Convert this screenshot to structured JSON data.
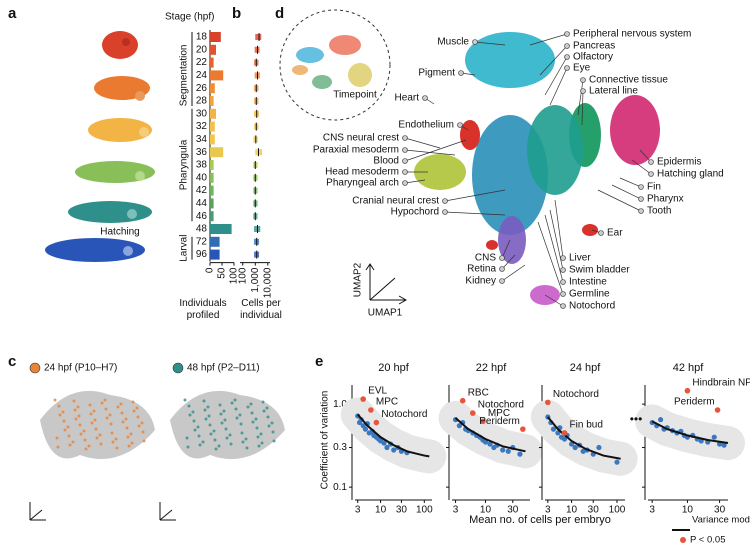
{
  "panel_labels": [
    "a",
    "b",
    "c",
    "d",
    "e"
  ],
  "chart_data": [
    {
      "type": "barh",
      "title": "Stage (hpf)",
      "categories": [
        "18",
        "20",
        "22",
        "24",
        "26",
        "28",
        "30",
        "32",
        "34",
        "36",
        "38",
        "40",
        "42",
        "44",
        "46",
        "48",
        "72",
        "96"
      ],
      "values": [
        45,
        25,
        15,
        55,
        20,
        15,
        25,
        20,
        20,
        55,
        15,
        15,
        15,
        15,
        15,
        90,
        40,
        40
      ],
      "colors": [
        "#d9412b",
        "#e0532c",
        "#e5612e",
        "#ea7a30",
        "#ee8f35",
        "#f0a33c",
        "#f2b444",
        "#f3c04c",
        "#f0c64f",
        "#e8c94e",
        "#a7c955",
        "#88bf58",
        "#6fb35b",
        "#5aa35e",
        "#4a9b78",
        "#2f8f8a",
        "#2f6db5",
        "#2a55b8"
      ],
      "xlim": [
        0,
        100
      ],
      "xticks": [
        0,
        50,
        100
      ],
      "xlabel": "Individuals profiled",
      "periods": [
        "Segmentation",
        "Pharyngula",
        "Hatching",
        "Larval"
      ]
    },
    {
      "type": "box",
      "log": true,
      "values": [
        2000,
        1500,
        1200,
        1500,
        1200,
        1200,
        1300,
        1200,
        1100,
        1800,
        1000,
        1000,
        1000,
        1000,
        1000,
        1500,
        1300,
        1300
      ],
      "q1": [
        1000,
        900,
        800,
        900,
        800,
        800,
        800,
        800,
        700,
        1000,
        700,
        700,
        700,
        700,
        700,
        800,
        800,
        800
      ],
      "q3": [
        3000,
        2200,
        1800,
        2300,
        1800,
        1800,
        2000,
        1800,
        1600,
        3500,
        1500,
        1500,
        1500,
        1500,
        1500,
        2500,
        2000,
        2000
      ],
      "xlim": [
        60,
        15000
      ],
      "xticks": [
        100,
        {
          "value": 1000,
          "label": "1,000"
        },
        {
          "value": 10000,
          "label": "10,000"
        }
      ],
      "xlabel": "Cells per individual"
    },
    {
      "type": "scatter",
      "title": "20 hpf",
      "log": true,
      "xlim": [
        2.6,
        150
      ],
      "xticks": [
        3,
        10,
        30,
        100
      ],
      "ylim": [
        0.07,
        1.7
      ],
      "yticks": [
        {
          "value": 1,
          "label": "1.0"
        },
        0.3,
        0.1
      ],
      "series": [
        {
          "color": "#3a78c2",
          "x": [
            3,
            3.3,
            3.6,
            4,
            4.5,
            5,
            5.5,
            6.5,
            7,
            8,
            9,
            10,
            12,
            14,
            17,
            20,
            25,
            30,
            40
          ],
          "values": [
            0.72,
            0.6,
            0.65,
            0.55,
            0.5,
            0.58,
            0.45,
            0.47,
            0.42,
            0.4,
            0.38,
            0.36,
            0.34,
            0.3,
            0.33,
            0.28,
            0.3,
            0.27,
            0.26
          ]
        },
        {
          "color": "#e8553a",
          "x": [
            4,
            6,
            8
          ],
          "values": [
            1.15,
            0.85,
            0.6
          ],
          "labels": [
            "EVL",
            "MPC",
            "Notochord"
          ]
        },
        {
          "color": "#111111",
          "x": [
            3,
            5,
            10,
            20,
            40,
            100,
            130
          ],
          "values": [
            0.75,
            0.55,
            0.4,
            0.32,
            0.27,
            0.24,
            0.235
          ]
        }
      ]
    },
    {
      "type": "scatter",
      "title": "22 hpf",
      "log": true,
      "xlim": [
        2.6,
        60
      ],
      "xticks": [
        3,
        10,
        30
      ],
      "ylim": [
        0.07,
        1.7
      ],
      "yticks": [
        {
          "value": 1,
          "label": "1.0"
        },
        0.3,
        0.1
      ],
      "series": [
        {
          "color": "#3a78c2",
          "x": [
            3,
            3.5,
            4,
            4.5,
            5,
            6,
            7,
            8,
            9,
            10,
            12,
            14,
            16,
            20,
            25,
            30,
            40
          ],
          "values": [
            0.65,
            0.55,
            0.6,
            0.5,
            0.48,
            0.45,
            0.42,
            0.4,
            0.37,
            0.35,
            0.33,
            0.3,
            0.32,
            0.28,
            0.27,
            0.3,
            0.25
          ]
        },
        {
          "color": "#e8553a",
          "x": [
            4,
            6,
            9,
            45
          ],
          "values": [
            1.1,
            0.78,
            0.62,
            0.5
          ],
          "labels": [
            "RBC",
            "Notochord",
            "MPC",
            "Periderm"
          ]
        },
        {
          "color": "#111111",
          "x": [
            3,
            5,
            10,
            20,
            50
          ],
          "values": [
            0.68,
            0.5,
            0.38,
            0.31,
            0.27
          ]
        }
      ]
    },
    {
      "type": "scatter",
      "title": "24 hpf",
      "log": true,
      "xlim": [
        2.6,
        150
      ],
      "xticks": [
        3,
        10,
        30,
        100
      ],
      "ylim": [
        0.07,
        1.7
      ],
      "yticks": [
        {
          "value": 1,
          "label": "1.0"
        },
        0.3,
        0.1
      ],
      "series": [
        {
          "color": "#3a78c2",
          "x": [
            3,
            3.5,
            4,
            5,
            5.5,
            6,
            7,
            8,
            10,
            12,
            15,
            18,
            22,
            30,
            40,
            100
          ],
          "values": [
            0.7,
            0.6,
            0.5,
            0.45,
            0.52,
            0.4,
            0.38,
            0.42,
            0.33,
            0.3,
            0.32,
            0.27,
            0.28,
            0.25,
            0.3,
            0.2
          ]
        },
        {
          "color": "#e8553a",
          "x": [
            3,
            7
          ],
          "values": [
            1.05,
            0.45
          ],
          "labels": [
            "Notochord",
            "Fin bud"
          ]
        },
        {
          "color": "#111111",
          "x": [
            3,
            5,
            10,
            20,
            50,
            120
          ],
          "values": [
            0.7,
            0.5,
            0.36,
            0.29,
            0.24,
            0.22
          ]
        }
      ]
    },
    {
      "type": "scatter",
      "title": "42 hpf",
      "log": true,
      "xlim": [
        2.6,
        40
      ],
      "xticks": [
        3,
        10,
        30
      ],
      "ylim": [
        0.07,
        1.7
      ],
      "yticks": [
        {
          "value": 1,
          "label": "1.0"
        },
        0.3,
        0.1
      ],
      "series": [
        {
          "color": "#3a78c2",
          "x": [
            3,
            3.5,
            4,
            4.5,
            5,
            6,
            7,
            8,
            9,
            10,
            12,
            14,
            16,
            20,
            25,
            30,
            35
          ],
          "values": [
            0.6,
            0.55,
            0.65,
            0.5,
            0.52,
            0.48,
            0.45,
            0.47,
            0.42,
            0.4,
            0.42,
            0.38,
            0.36,
            0.35,
            0.4,
            0.33,
            0.32
          ]
        },
        {
          "color": "#e8553a",
          "x": [
            10,
            28
          ],
          "values": [
            1.45,
            0.85
          ],
          "labels": [
            "Hindbrain NP",
            "Periderm"
          ]
        },
        {
          "color": "#111111",
          "x": [
            3,
            5,
            10,
            20,
            40
          ],
          "values": [
            0.62,
            0.5,
            0.42,
            0.37,
            0.34
          ]
        }
      ]
    }
  ],
  "umap": {
    "title": "Timepoint",
    "labels": [
      "Muscle",
      "Pigment",
      "Heart",
      "Endothelium",
      "CNS neural crest",
      "Paraxial mesoderm",
      "Blood",
      "Head mesoderm",
      "Pharyngeal arch",
      "Cranial neural crest",
      "Hypochord",
      "CNS",
      "Retina",
      "Kidney",
      "Peripheral nervous system",
      "Pancreas",
      "Olfactory",
      "Eye",
      "Connective tissue",
      "Lateral line",
      "Epidermis",
      "Hatching gland",
      "Fin",
      "Pharynx",
      "Tooth",
      "Ear",
      "Liver",
      "Swim bladder",
      "Intestine",
      "Germline",
      "Notochord"
    ],
    "axis_labels": [
      "UMAP2",
      "UMAP1"
    ]
  },
  "panel_c": {
    "legend": [
      {
        "label": "24 hpf (P10–H7)",
        "color": "#e8833a"
      },
      {
        "label": "48 hpf (P2–D11)",
        "color": "#2f8f8a"
      }
    ]
  },
  "panel_e": {
    "xlabel": "Mean no. of cells per embryo",
    "ylabel": "Coefficient of variation",
    "ellipsis": "•••",
    "legend": [
      "Variance model",
      "P < 0.05"
    ]
  }
}
